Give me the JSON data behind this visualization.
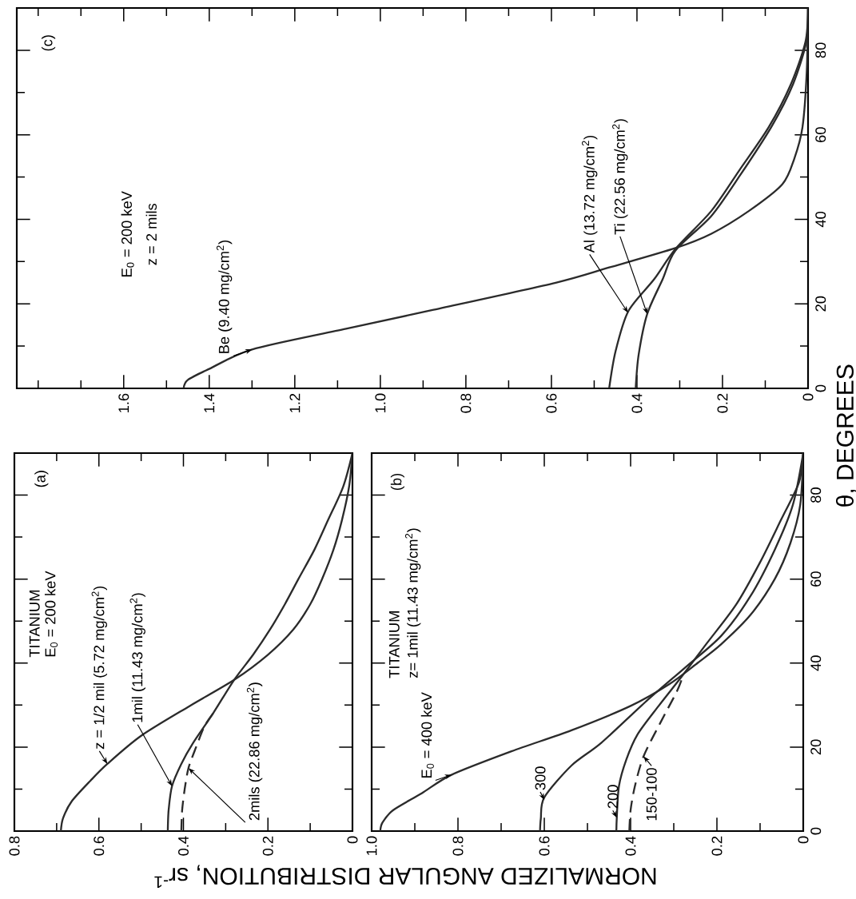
{
  "chart_data": [
    {
      "type": "line",
      "xlim": [
        1.85,
        0
      ],
      "ylim": [
        0,
        90
      ],
      "yticks": [
        0,
        {
          "value": 10,
          "label": null
        },
        20,
        {
          "value": 30,
          "label": null
        },
        40,
        {
          "value": 50,
          "label": null
        },
        60,
        {
          "value": 70,
          "label": null
        },
        80
      ],
      "xticks": [
        0,
        {
          "value": 0.1,
          "label": null
        },
        0.2,
        {
          "value": 0.3,
          "label": null
        },
        0.4,
        {
          "value": 0.5,
          "label": null
        },
        0.6,
        {
          "value": 0.7,
          "label": null
        },
        0.8,
        {
          "value": 0.9,
          "label": null
        },
        {
          "value": 1.0,
          "label": "1.0"
        },
        {
          "value": 1.1,
          "label": null
        },
        1.2,
        {
          "value": 1.3,
          "label": null
        },
        1.4,
        {
          "value": 1.5,
          "label": null
        },
        1.6,
        {
          "value": 1.7,
          "label": null
        },
        {
          "value": 1.8,
          "label": null
        }
      ],
      "annotations": [
        "E$_{0}$ = 200 keV",
        "z = 2 mils",
        "(c)",
        {
          "text": "Be (9.40 mg/cm$^{2}$)",
          "x": 1.3,
          "y": 9.2
        },
        {
          "text": "Al (13.72 mg/cm$^{2}$)",
          "x": 0.421,
          "y": 17.9
        },
        {
          "text": "Ti (22.56 mg/cm$^{2}$)",
          "x": 0.376,
          "y": 17.6
        }
      ],
      "series": [
        {
          "color": "#2b2b2b",
          "line_style": "solid",
          "values": [
            0,
            2,
            4.6,
            9.2,
            14.1,
            18.5,
            25,
            28.6,
            33.2,
            36.6,
            42,
            48.3,
            54.4,
            61.8,
            75,
            90
          ],
          "x": [
            1.46,
            1.45,
            1.4,
            1.3,
            1.08,
            0.88,
            0.59,
            0.465,
            0.31,
            0.226,
            0.138,
            0.06,
            0.032,
            0.013,
            0.003,
            0
          ]
        },
        {
          "color": "#2b2b2b",
          "line_style": "solid",
          "values": [
            0,
            8.8,
            18.3,
            25.8,
            33,
            42,
            51.7,
            61.8,
            72,
            82,
            90
          ],
          "x": [
            0.465,
            0.45,
            0.42,
            0.36,
            0.31,
            0.226,
            0.16,
            0.092,
            0.04,
            0.006,
            0
          ]
        },
        {
          "color": "#2b2b2b",
          "line_style": "solid",
          "values": [
            0,
            8,
            17.6,
            25.8,
            32.6,
            40.8,
            50.4,
            62,
            72,
            82,
            90
          ],
          "x": [
            0.403,
            0.396,
            0.376,
            0.34,
            0.31,
            0.226,
            0.159,
            0.085,
            0.035,
            0.004,
            0
          ]
        }
      ]
    },
    {
      "type": "line",
      "xlim": [
        0.8,
        0
      ],
      "ylim": [
        0,
        90
      ],
      "tick_labels": "x",
      "yticks": [
        0,
        {
          "value": 10,
          "label": null
        },
        20,
        {
          "value": 30,
          "label": null
        },
        40,
        {
          "value": 50,
          "label": null
        },
        60,
        {
          "value": 70,
          "label": null
        },
        80
      ],
      "xticks": [
        0,
        {
          "value": 0.1,
          "label": null
        },
        0.2,
        {
          "value": 0.3,
          "label": null
        },
        0.4,
        {
          "value": 0.5,
          "label": null
        },
        0.6,
        {
          "value": 0.7,
          "label": null
        },
        0.8
      ],
      "annotations": [
        "TITANIUM",
        "E$_{0}$ = 200 keV",
        "(a)",
        {
          "text": "z = 1/2 mil (5.72 mg/cm$^{2}$)",
          "x": 0.58,
          "y": 16
        },
        {
          "text": "1mil (11.43 mg/cm$^{2}$)",
          "x": 0.427,
          "y": 10.7
        },
        {
          "text": "2mils (22.86 mg/cm$^{2}$)",
          "x": 0.388,
          "y": 15
        }
      ],
      "series": [
        {
          "color": "#2b2b2b",
          "line_style": "solid",
          "values": [
            0,
            3,
            7,
            12,
            16,
            22.7,
            29.8,
            36,
            42,
            48,
            54,
            60,
            67,
            74,
            82,
            90
          ],
          "x": [
            0.69,
            0.685,
            0.665,
            0.62,
            0.58,
            0.5,
            0.385,
            0.28,
            0.2,
            0.14,
            0.1,
            0.072,
            0.045,
            0.025,
            0.008,
            0
          ]
        },
        {
          "color": "#2b2b2b",
          "line_style": "solid",
          "values": [
            0,
            5,
            10.7,
            16,
            21,
            28,
            36,
            42,
            48,
            54,
            60,
            67,
            74,
            82,
            90
          ],
          "x": [
            0.437,
            0.435,
            0.427,
            0.405,
            0.377,
            0.33,
            0.28,
            0.235,
            0.195,
            0.16,
            0.128,
            0.09,
            0.058,
            0.022,
            0
          ]
        },
        {
          "color": "#2b2b2b",
          "line_style": "dashed",
          "values": [
            0,
            5,
            10,
            15,
            20,
            25,
            28
          ],
          "x": [
            0.405,
            0.403,
            0.397,
            0.388,
            0.37,
            0.35,
            0.33
          ]
        }
      ]
    },
    {
      "type": "line",
      "xlim": [
        1.0,
        0
      ],
      "ylim": [
        0,
        90
      ],
      "ylabel": "θ, DEGREES",
      "xlabel": "NORMALIZED ANGULAR DISTRIBUTION, sr$^{-1}$",
      "yticks": [
        0,
        {
          "value": 10,
          "label": null
        },
        20,
        {
          "value": 30,
          "label": null
        },
        40,
        {
          "value": 50,
          "label": null
        },
        60,
        {
          "value": 70,
          "label": null
        },
        80
      ],
      "xticks": [
        0,
        {
          "value": 0.1,
          "label": null
        },
        0.2,
        {
          "value": 0.3,
          "label": null
        },
        0.4,
        {
          "value": 0.5,
          "label": null
        },
        0.6,
        {
          "value": 0.7,
          "label": null
        },
        0.8,
        {
          "value": 0.9,
          "label": null
        },
        {
          "value": 1.0,
          "label": "1.0"
        }
      ],
      "annotations": [
        "TITANIUM",
        "z= 1mil (11.43 mg/cm$^{2}$)",
        "(b)",
        {
          "text": "E$_{0}$ = 400 keV",
          "x": 0.815,
          "y": 13.4
        },
        {
          "text": "300",
          "x": 0.6,
          "y": 7.4
        },
        {
          "text": "200",
          "x": 0.432,
          "y": 3.2
        },
        {
          "text": "150-100",
          "x": 0.37,
          "y": 17.8
        }
      ],
      "series": [
        {
          "color": "#2b2b2b",
          "line_style": "solid",
          "values": [
            0,
            2,
            5,
            9,
            13.4,
            19,
            24,
            29.8,
            35,
            40,
            44.5,
            51.5,
            60,
            68.5,
            77.7,
            90
          ],
          "x": [
            0.98,
            0.975,
            0.95,
            0.884,
            0.815,
            0.676,
            0.537,
            0.4,
            0.31,
            0.245,
            0.19,
            0.122,
            0.066,
            0.03,
            0.007,
            0
          ]
        },
        {
          "color": "#2b2b2b",
          "line_style": "solid",
          "values": [
            0,
            3,
            8,
            15.6,
            21,
            31,
            39,
            46.5,
            56,
            67,
            77.7,
            90
          ],
          "x": [
            0.61,
            0.608,
            0.6,
            0.537,
            0.468,
            0.363,
            0.273,
            0.19,
            0.122,
            0.066,
            0.024,
            0
          ]
        },
        {
          "color": "#2b2b2b",
          "line_style": "solid",
          "values": [
            0,
            3.2,
            10.7,
            17,
            23,
            29.8,
            37,
            44.5,
            54,
            64,
            74,
            83,
            90
          ],
          "x": [
            0.433,
            0.432,
            0.427,
            0.41,
            0.384,
            0.335,
            0.28,
            0.225,
            0.155,
            0.1,
            0.052,
            0.01,
            0
          ]
        },
        {
          "color": "#2b2b2b",
          "line_style": "dashed",
          "values": [
            0,
            5,
            10.7,
            17.8,
            26,
            33,
            36
          ],
          "x": [
            0.403,
            0.4,
            0.39,
            0.37,
            0.33,
            0.294,
            0.282
          ]
        }
      ]
    }
  ]
}
